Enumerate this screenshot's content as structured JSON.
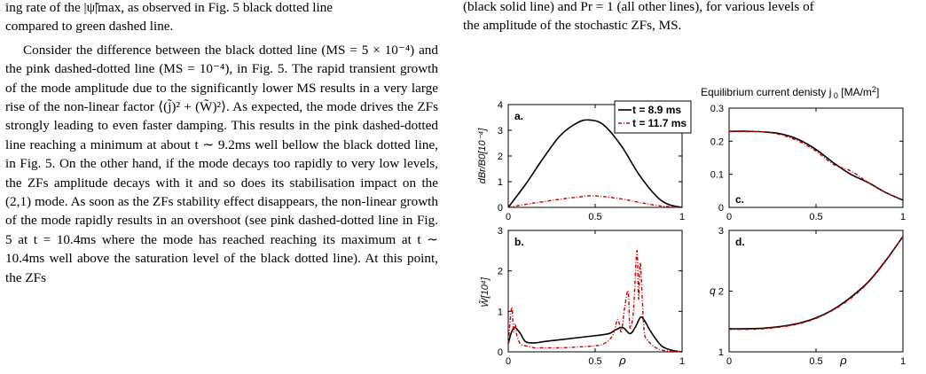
{
  "left_text": {
    "line_1": "ing rate of the |ψ̃|max, as observed in Fig. 5 black dotted line",
    "line_2": "compared to green dashed line.",
    "para_2": "Consider the difference between the black dotted line (MS = 5 × 10⁻⁴) and the pink dashed-dotted line (MS = 10⁻⁴), in Fig. 5. The rapid transient growth of the mode amplitude due to the significantly lower MS results in a very large rise of the non-linear factor ⟨(j̃)² + (W̃)²⟩. As expected, the mode drives the ZFs strongly leading to even faster damping. This results in the pink dashed-dotted line reaching a minimum at about t ∼ 9.2ms well bellow the black dotted line, in Fig. 5. On the other hand, if the mode decays too rapidly to very low levels, the ZFs amplitude decays with it and so does its stabilisation impact on the (2,1) mode. As soon as the ZFs stability effect disappears, the non-linear growth of the mode rapidly results in an overshoot (see pink dashed-dotted line in Fig. 5 at t = 10.4ms where the mode has reached reaching its maximum at t ∼ 10.4ms well above the saturation level of the black dotted line). At this point, the ZFs"
  },
  "caption_top": {
    "line_1": "(black solid line) and Pr = 1 (all other lines), for various levels of",
    "line_2": "the amplitude of the stochastic ZFs, MS."
  },
  "figure": {
    "panel_a": {
      "label": "a.",
      "ylabel": "dBr/B0[10⁻⁴]",
      "yticks": [
        "0",
        "1",
        "2",
        "3",
        "4"
      ],
      "xticks": [
        "0",
        "0.5",
        "1"
      ]
    },
    "panel_b": {
      "label": "b.",
      "ylabel": "W̃[10⁴]",
      "yticks": [
        "0",
        "1",
        "2",
        "3"
      ],
      "xticks": [
        "0",
        "0.5",
        "ρ",
        "1"
      ]
    },
    "panel_c": {
      "label": "c.",
      "title": "Equilibrium current denisty j 0 [MA/m2]",
      "yticks": [
        "0",
        "0.1",
        "0.2",
        "0.3"
      ],
      "xticks": [
        "0",
        "0.5",
        "1"
      ]
    },
    "panel_d": {
      "label": "d.",
      "ylabel": "q",
      "yticks": [
        "1",
        "2",
        "3"
      ],
      "xticks": [
        "0",
        "0.5",
        "ρ",
        "1"
      ]
    },
    "legend": {
      "entries": [
        "t = 8.9 ms",
        "t = 11.7 ms"
      ],
      "colors": [
        "#000000",
        "#cc0000"
      ]
    }
  },
  "chart_data": [
    {
      "type": "line",
      "panel": "a",
      "xlim": [
        0,
        1
      ],
      "ylim": [
        0,
        4
      ],
      "series": [
        {
          "name": "t = 8.9 ms",
          "x": [
            0,
            0.1,
            0.2,
            0.3,
            0.4,
            0.47,
            0.55,
            0.65,
            0.75,
            0.85,
            0.92,
            1.0
          ],
          "y": [
            0,
            0.9,
            1.9,
            2.8,
            3.3,
            3.4,
            3.2,
            2.4,
            1.3,
            0.45,
            0.12,
            0
          ]
        },
        {
          "name": "t = 11.7 ms",
          "x": [
            0,
            0.1,
            0.2,
            0.3,
            0.4,
            0.47,
            0.55,
            0.65,
            0.75,
            0.85,
            0.92,
            1.0
          ],
          "y": [
            0,
            0.12,
            0.22,
            0.32,
            0.4,
            0.45,
            0.42,
            0.33,
            0.2,
            0.08,
            0.03,
            0
          ]
        }
      ]
    },
    {
      "type": "line",
      "panel": "b",
      "xlim": [
        0,
        1
      ],
      "ylim": [
        0,
        3
      ],
      "series": [
        {
          "name": "t = 8.9 ms",
          "x": [
            0,
            0.02,
            0.04,
            0.07,
            0.1,
            0.15,
            0.2,
            0.3,
            0.4,
            0.5,
            0.58,
            0.62,
            0.66,
            0.7,
            0.73,
            0.76,
            0.78,
            0.82,
            0.87,
            0.9,
            0.95,
            1.0
          ],
          "y": [
            0.2,
            0.5,
            0.6,
            0.45,
            0.25,
            0.22,
            0.25,
            0.3,
            0.35,
            0.4,
            0.45,
            0.55,
            0.6,
            0.45,
            0.6,
            0.85,
            0.8,
            0.5,
            0.2,
            0.1,
            0.03,
            0
          ]
        },
        {
          "name": "t = 11.7 ms",
          "x": [
            0,
            0.02,
            0.03,
            0.04,
            0.05,
            0.07,
            0.1,
            0.15,
            0.2,
            0.3,
            0.4,
            0.5,
            0.55,
            0.6,
            0.63,
            0.65,
            0.67,
            0.69,
            0.7,
            0.72,
            0.74,
            0.75,
            0.76,
            0.78,
            0.8,
            0.85,
            0.9,
            1.0
          ],
          "y": [
            0.2,
            1.1,
            0.5,
            0.7,
            0.4,
            0.2,
            0.15,
            0.1,
            0.1,
            0.1,
            0.12,
            0.15,
            0.2,
            0.4,
            0.8,
            0.5,
            1.1,
            1.5,
            0.6,
            1.0,
            2.5,
            1.3,
            2.2,
            0.6,
            0.3,
            0.1,
            0.03,
            0
          ]
        }
      ]
    },
    {
      "type": "line",
      "panel": "c",
      "xlim": [
        0,
        1
      ],
      "ylim": [
        0,
        0.3
      ],
      "series": [
        {
          "name": "t = 8.9 ms",
          "x": [
            0,
            0.1,
            0.2,
            0.3,
            0.4,
            0.5,
            0.6,
            0.7,
            0.8,
            0.9,
            1.0
          ],
          "y": [
            0.23,
            0.23,
            0.228,
            0.222,
            0.205,
            0.175,
            0.135,
            0.1,
            0.075,
            0.045,
            0.022
          ]
        },
        {
          "name": "t = 11.7 ms",
          "x": [
            0,
            0.1,
            0.2,
            0.3,
            0.4,
            0.5,
            0.6,
            0.7,
            0.8,
            0.9,
            1.0
          ],
          "y": [
            0.229,
            0.229,
            0.228,
            0.219,
            0.2,
            0.17,
            0.13,
            0.11,
            0.075,
            0.045,
            0.022
          ]
        }
      ]
    },
    {
      "type": "line",
      "panel": "d",
      "xlim": [
        0,
        1
      ],
      "ylim": [
        1,
        3
      ],
      "series": [
        {
          "name": "t = 8.9 ms",
          "x": [
            0,
            0.1,
            0.2,
            0.3,
            0.4,
            0.5,
            0.6,
            0.7,
            0.8,
            0.9,
            1.0
          ],
          "y": [
            1.38,
            1.38,
            1.39,
            1.42,
            1.47,
            1.56,
            1.7,
            1.9,
            2.15,
            2.5,
            2.9
          ]
        },
        {
          "name": "t = 11.7 ms",
          "x": [
            0,
            0.1,
            0.2,
            0.3,
            0.4,
            0.5,
            0.6,
            0.7,
            0.8,
            0.9,
            1.0
          ],
          "y": [
            1.37,
            1.37,
            1.38,
            1.41,
            1.46,
            1.55,
            1.69,
            1.88,
            2.14,
            2.49,
            2.9
          ]
        }
      ]
    }
  ]
}
